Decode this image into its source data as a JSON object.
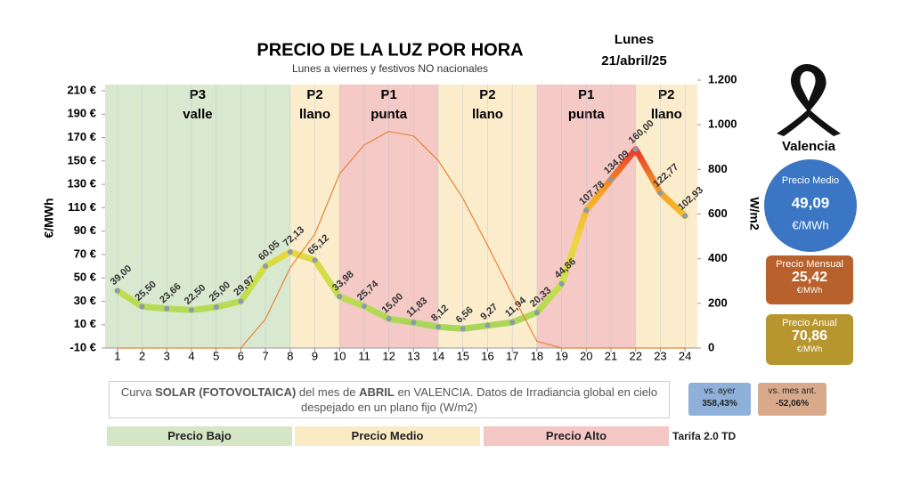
{
  "chart_data": {
    "type": "line",
    "title": "PRECIO DE LA LUZ POR HORA",
    "subtitle": "Lunes a viernes y festivos NO nacionales",
    "day": "Lunes",
    "date": "21/abril/25",
    "ylabel": "€/MWh",
    "y2label": "W/m2",
    "x": [
      1,
      2,
      3,
      4,
      5,
      6,
      7,
      8,
      9,
      10,
      11,
      12,
      13,
      14,
      15,
      16,
      17,
      18,
      19,
      20,
      21,
      22,
      23,
      24
    ],
    "xlim": [
      0.5,
      24.5
    ],
    "ylim": [
      -10,
      210
    ],
    "yticks": [
      {
        "value": -10,
        "label": "-10 €"
      },
      {
        "value": 10,
        "label": "10 €"
      },
      {
        "value": 30,
        "label": "30 €"
      },
      {
        "value": 50,
        "label": "50 €"
      },
      {
        "value": 70,
        "label": "70 €"
      },
      {
        "value": 90,
        "label": "90 €"
      },
      {
        "value": 110,
        "label": "110 €"
      },
      {
        "value": 130,
        "label": "130 €"
      },
      {
        "value": 150,
        "label": "150 €"
      },
      {
        "value": 170,
        "label": "170 €"
      },
      {
        "value": 190,
        "label": "190 €"
      },
      {
        "value": 210,
        "label": "210 €"
      }
    ],
    "y2lim": [
      0,
      1200
    ],
    "y2ticks": [
      0,
      200,
      400,
      600,
      800,
      {
        "value": 1000,
        "label": "1.000"
      },
      {
        "value": 1200,
        "label": "1.200"
      }
    ],
    "grid": true,
    "series": [
      {
        "values": [
          39.0,
          25.5,
          23.66,
          22.5,
          25.0,
          29.97,
          60.05,
          72.13,
          65.12,
          33.98,
          25.74,
          15.0,
          11.83,
          8.12,
          6.56,
          9.27,
          11.94,
          20.33,
          44.86,
          107.78,
          134.09,
          160.0,
          122.77,
          102.93
        ],
        "value_labels": [
          "39,00",
          "25,50",
          "23,66",
          "22,50",
          "25,00",
          "29,97",
          "60,05",
          "72,13",
          "65,12",
          "33,98",
          "25,74",
          "15,00",
          "11,83",
          "8,12",
          "6,56",
          "9,27",
          "11,94",
          "20,33",
          "44,86",
          "107,78",
          "134,09",
          "160,00",
          "122,77",
          "102,93"
        ],
        "color": "#8a9bb0",
        "gradient": [
          "#e8372a",
          "#f5a623",
          "#f2d43a",
          "#c8e04a",
          "#a6d65a"
        ]
      },
      {
        "axis": "y2",
        "color": "#e8823a",
        "values": [
          0,
          0,
          0,
          0,
          0,
          0,
          130,
          360,
          510,
          780,
          910,
          970,
          950,
          840,
          670,
          460,
          240,
          30,
          0,
          0,
          0,
          0,
          0,
          0
        ]
      }
    ],
    "periods": [
      {
        "name": "P3",
        "label": "valle",
        "start": 0.5,
        "end": 8,
        "color": "#d9e9cf"
      },
      {
        "name": "P2",
        "label": "llano",
        "start": 8,
        "end": 10,
        "color": "#fbeccc"
      },
      {
        "name": "P1",
        "label": "punta",
        "start": 10,
        "end": 14,
        "color": "#f5c9c5"
      },
      {
        "name": "P2",
        "label": "llano",
        "start": 14,
        "end": 18,
        "color": "#fbeccc"
      },
      {
        "name": "P1",
        "label": "punta",
        "start": 18,
        "end": 22,
        "color": "#f5c9c5"
      },
      {
        "name": "P2",
        "label": "llano",
        "start": 22,
        "end": 24.5,
        "color": "#fbeccc"
      }
    ],
    "annotation": [
      "Curva ",
      "SOLAR (FOTOVOLTAICA)",
      " del mes de ",
      "ABRIL",
      " en VALENCIA. Datos de Irradiancia global en cielo despejado en un plano fijo (W/m2)"
    ],
    "price_legend": [
      {
        "label": "Precio Bajo",
        "color": "#d5e6c6"
      },
      {
        "label": "Precio Medio",
        "color": "#fbebc4"
      },
      {
        "label": "Precio Alto",
        "color": "#f4c7c4"
      }
    ],
    "tariff": "Tarifa 2.0 TD"
  },
  "panel": {
    "city": "Valencia",
    "average": {
      "title": "Precio Medio",
      "value": "49,09",
      "unit": "€/MWh"
    },
    "monthly": {
      "title": "Precio Mensual",
      "value": "25,42",
      "unit": "€/MWh"
    },
    "annual": {
      "title": "Precio Anual",
      "value": "70,86",
      "unit": "€/MWh"
    },
    "vs_yesterday": {
      "title": "vs. ayer",
      "value": "358,43%"
    },
    "vs_last_month": {
      "title": "vs. mes ant.",
      "value": "-52,06%"
    }
  }
}
